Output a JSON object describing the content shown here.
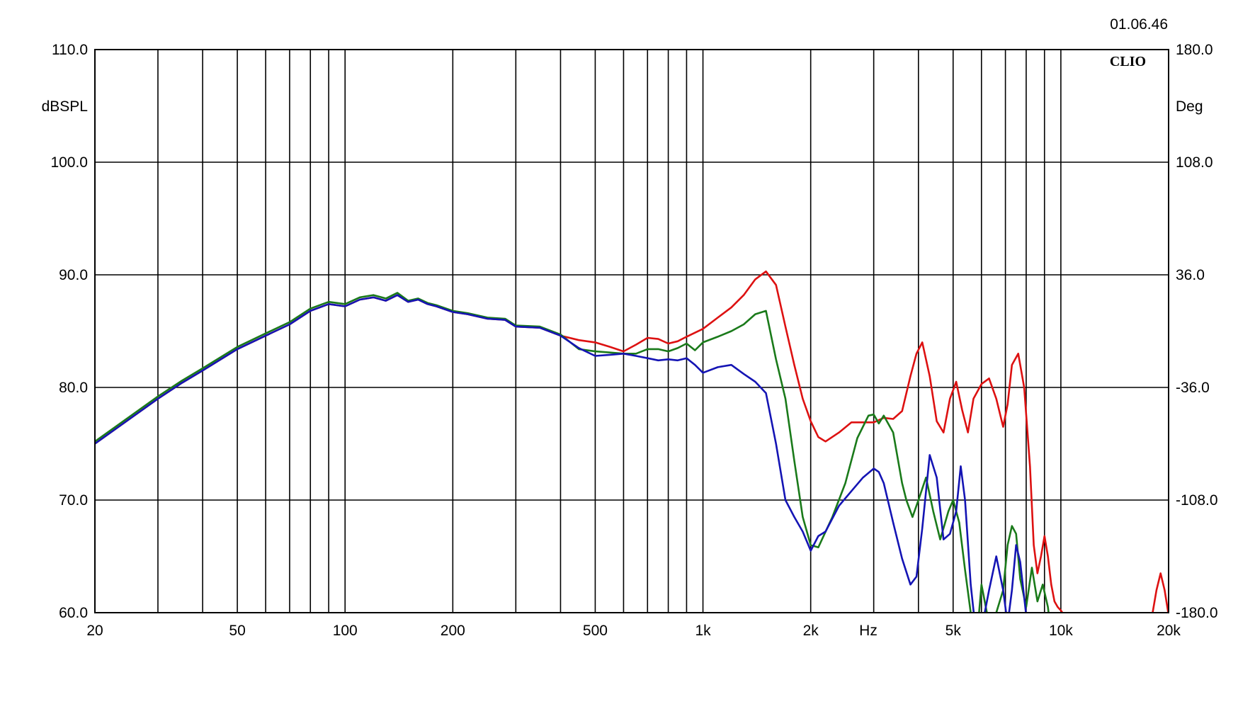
{
  "header": {
    "timestamp": "01.06.46",
    "brand": "CLIO"
  },
  "chart_data": {
    "type": "line",
    "x_scale": "log",
    "xlim": [
      20,
      20000
    ],
    "ylim": [
      60,
      110
    ],
    "y2lim": [
      -180,
      180
    ],
    "grid": true,
    "xlabel": "Hz",
    "ylabel": "dBSPL",
    "y2label": "Deg",
    "x_tick_labels": [
      {
        "value": 20,
        "label": "20"
      },
      {
        "value": 50,
        "label": "50"
      },
      {
        "value": 100,
        "label": "100"
      },
      {
        "value": 200,
        "label": "200"
      },
      {
        "value": 500,
        "label": "500"
      },
      {
        "value": 1000,
        "label": "1k"
      },
      {
        "value": 2000,
        "label": "2k"
      },
      {
        "value": 5000,
        "label": "5k"
      },
      {
        "value": 10000,
        "label": "10k"
      },
      {
        "value": 20000,
        "label": "20k"
      }
    ],
    "x_grid_values": [
      20,
      30,
      40,
      50,
      60,
      70,
      80,
      90,
      100,
      200,
      300,
      400,
      500,
      600,
      700,
      800,
      900,
      1000,
      2000,
      3000,
      4000,
      5000,
      6000,
      7000,
      8000,
      9000,
      10000
    ],
    "y_ticks": [
      {
        "value": 110,
        "label": "110.0"
      },
      {
        "value": 100,
        "label": "100.0"
      },
      {
        "value": 90,
        "label": "90.0"
      },
      {
        "value": 80,
        "label": "80.0"
      },
      {
        "value": 70,
        "label": "70.0"
      },
      {
        "value": 60,
        "label": "60.0"
      }
    ],
    "y2_ticks": [
      {
        "value": 180,
        "label": "180.0"
      },
      {
        "value": 108,
        "label": "108.0"
      },
      {
        "value": 36,
        "label": "36.0"
      },
      {
        "value": -36,
        "label": "-36.0"
      },
      {
        "value": -108,
        "label": "-108.0"
      },
      {
        "value": -180,
        "label": "-180.0"
      }
    ],
    "series": [
      {
        "color": "#dd1111",
        "x": [
          20,
          25,
          30,
          35,
          40,
          50,
          60,
          70,
          80,
          90,
          100,
          110,
          120,
          130,
          140,
          150,
          160,
          170,
          180,
          200,
          220,
          250,
          280,
          300,
          350,
          400,
          450,
          500,
          550,
          600,
          650,
          700,
          750,
          800,
          850,
          900,
          1000,
          1100,
          1200,
          1300,
          1400,
          1500,
          1600,
          1700,
          1800,
          1900,
          2000,
          2100,
          2200,
          2400,
          2600,
          2800,
          3000,
          3200,
          3400,
          3600,
          3800,
          3950,
          4100,
          4300,
          4500,
          4700,
          4900,
          5100,
          5300,
          5500,
          5700,
          6000,
          6300,
          6600,
          6900,
          7100,
          7300,
          7600,
          7900,
          8200,
          8400,
          8600,
          8800,
          9000,
          9200,
          9400,
          9600,
          9800,
          10000,
          10200,
          18000,
          18500,
          19000,
          19500,
          20000
        ],
        "y": [
          75.0,
          77.2,
          79.0,
          80.4,
          81.5,
          83.4,
          84.6,
          85.6,
          86.8,
          87.4,
          87.2,
          87.8,
          88.0,
          87.7,
          88.2,
          87.6,
          87.8,
          87.4,
          87.2,
          86.7,
          86.5,
          86.1,
          86.0,
          85.4,
          85.3,
          84.6,
          84.2,
          84.0,
          83.6,
          83.2,
          83.8,
          84.4,
          84.3,
          83.9,
          84.1,
          84.5,
          85.2,
          86.2,
          87.1,
          88.2,
          89.6,
          90.3,
          89.1,
          85.4,
          82.0,
          79.0,
          77.0,
          75.6,
          75.2,
          76.0,
          76.9,
          76.9,
          76.9,
          77.3,
          77.2,
          77.9,
          81.0,
          83.0,
          84.0,
          81.0,
          77.0,
          76.0,
          79.0,
          80.5,
          78.0,
          76.0,
          79.0,
          80.3,
          80.8,
          79.0,
          76.5,
          78.5,
          82.0,
          83.0,
          80.0,
          73.0,
          66.0,
          63.5,
          65.0,
          66.8,
          65.0,
          62.5,
          61.0,
          60.5,
          60.2,
          59.8,
          59.8,
          62.0,
          63.5,
          62.0,
          59.8
        ]
      },
      {
        "color": "#1a7a1a",
        "x": [
          20,
          25,
          30,
          35,
          40,
          50,
          60,
          70,
          80,
          90,
          100,
          110,
          120,
          130,
          140,
          150,
          160,
          170,
          180,
          200,
          220,
          250,
          280,
          300,
          350,
          400,
          450,
          500,
          550,
          600,
          650,
          700,
          750,
          800,
          850,
          900,
          950,
          1000,
          1100,
          1200,
          1300,
          1400,
          1500,
          1600,
          1700,
          1800,
          1900,
          2000,
          2100,
          2300,
          2500,
          2700,
          2900,
          3000,
          3100,
          3200,
          3400,
          3600,
          3700,
          3850,
          4000,
          4200,
          4400,
          4600,
          4700,
          4850,
          5000,
          5200,
          5400,
          5600,
          5800,
          6000,
          6300,
          6600,
          6900,
          7100,
          7300,
          7500,
          7700,
          8000,
          8300,
          8600,
          8900,
          9200,
          9400,
          9600
        ],
        "y": [
          75.2,
          77.4,
          79.2,
          80.6,
          81.7,
          83.6,
          84.8,
          85.8,
          87.0,
          87.6,
          87.4,
          88.0,
          88.2,
          87.9,
          88.4,
          87.7,
          87.9,
          87.5,
          87.3,
          86.8,
          86.6,
          86.2,
          86.1,
          85.5,
          85.4,
          84.7,
          83.4,
          83.2,
          83.1,
          83.0,
          83.0,
          83.4,
          83.4,
          83.2,
          83.5,
          83.9,
          83.3,
          84.0,
          84.5,
          85.0,
          85.6,
          86.5,
          86.8,
          82.5,
          79.0,
          73.5,
          68.5,
          66.0,
          65.8,
          68.5,
          71.5,
          75.5,
          77.5,
          77.6,
          76.8,
          77.5,
          76.0,
          71.5,
          70.0,
          68.5,
          70.0,
          72.0,
          69.0,
          66.5,
          67.5,
          69.0,
          70.0,
          68.0,
          63.8,
          60.0,
          57.0,
          62.5,
          59.0,
          60.0,
          62.0,
          66.0,
          67.7,
          67.0,
          63.0,
          60.5,
          64.0,
          61.0,
          62.5,
          60.5,
          58.0,
          57.0
        ]
      },
      {
        "color": "#1414b4",
        "x": [
          20,
          25,
          30,
          35,
          40,
          50,
          60,
          70,
          80,
          90,
          100,
          110,
          120,
          130,
          140,
          150,
          160,
          170,
          180,
          200,
          220,
          250,
          280,
          300,
          350,
          400,
          450,
          500,
          550,
          600,
          650,
          700,
          750,
          800,
          850,
          900,
          950,
          1000,
          1100,
          1200,
          1300,
          1400,
          1500,
          1600,
          1700,
          1800,
          1900,
          2000,
          2100,
          2200,
          2400,
          2600,
          2800,
          3000,
          3100,
          3200,
          3400,
          3600,
          3800,
          3950,
          4100,
          4300,
          4500,
          4700,
          4900,
          5100,
          5250,
          5400,
          5600,
          5800,
          6000,
          6300,
          6600,
          6900,
          7100,
          7300,
          7500,
          7700,
          8000,
          8300,
          8600
        ],
        "y": [
          75.0,
          77.2,
          79.0,
          80.4,
          81.5,
          83.4,
          84.6,
          85.6,
          86.8,
          87.4,
          87.2,
          87.8,
          88.0,
          87.7,
          88.2,
          87.6,
          87.8,
          87.4,
          87.2,
          86.7,
          86.5,
          86.1,
          86.0,
          85.4,
          85.3,
          84.6,
          83.5,
          82.8,
          82.9,
          83.0,
          82.8,
          82.6,
          82.4,
          82.5,
          82.4,
          82.6,
          82.0,
          81.3,
          81.8,
          82.0,
          81.2,
          80.5,
          79.5,
          75.0,
          70.0,
          68.5,
          67.2,
          65.5,
          66.8,
          67.2,
          69.5,
          70.8,
          72.0,
          72.8,
          72.5,
          71.5,
          68.0,
          64.8,
          62.5,
          63.2,
          67.5,
          74.0,
          72.0,
          66.5,
          67.0,
          69.0,
          73.0,
          70.0,
          62.5,
          58.0,
          58.5,
          62.0,
          65.0,
          62.0,
          59.0,
          62.0,
          66.0,
          64.5,
          59.8,
          57.5,
          57.0
        ]
      }
    ]
  }
}
